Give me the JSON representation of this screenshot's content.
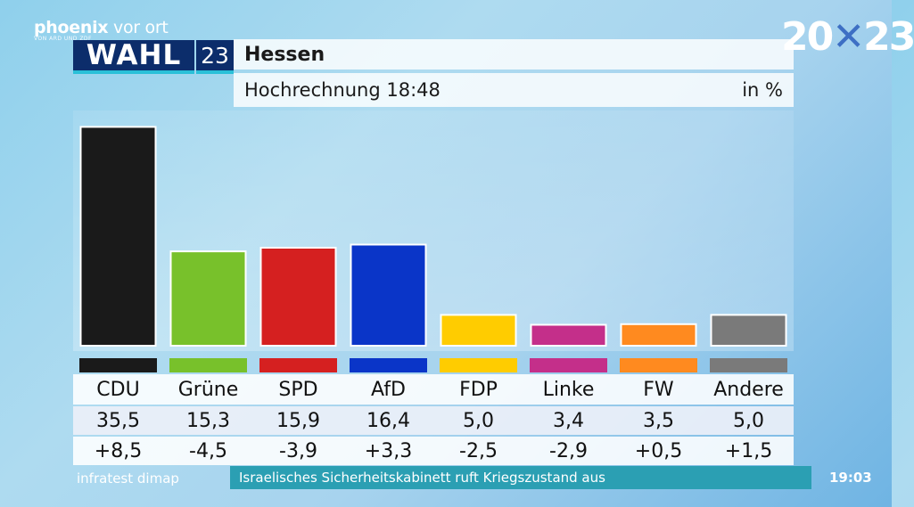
{
  "broadcaster": {
    "brand_bold": "phoenix",
    "brand_thin": " vor ort",
    "sub": "VON ARD UND ZDF"
  },
  "election": {
    "label": "WAHL",
    "number": "23",
    "year_left": "20",
    "year_x": "✕",
    "year_right": "23"
  },
  "header": {
    "title": "Hessen",
    "subtitle": "Hochrechnung 18:48",
    "unit": "in %"
  },
  "chart_data": {
    "type": "bar",
    "title": "Hessen – Hochrechnung 18:48",
    "ylabel": "in %",
    "ylim": [
      0,
      37
    ],
    "categories": [
      "CDU",
      "Grüne",
      "SPD",
      "AfD",
      "FDP",
      "Linke",
      "FW",
      "Andere"
    ],
    "values": [
      35.5,
      15.3,
      15.9,
      16.4,
      5.0,
      3.4,
      3.5,
      5.0
    ],
    "value_labels": [
      "35,5",
      "15,3",
      "15,9",
      "16,4",
      "5,0",
      "3,4",
      "3,5",
      "5,0"
    ],
    "diff_labels": [
      "+8,5",
      "-4,5",
      "-3,9",
      "+3,3",
      "-2,5",
      "-2,9",
      "+0,5",
      "+1,5"
    ],
    "colors": [
      "#1a1a1a",
      "#78c12b",
      "#d52020",
      "#0a35c8",
      "#ffcc00",
      "#c42f8a",
      "#ff8a1f",
      "#7a7a7a"
    ]
  },
  "footer": {
    "source": "infratest dimap",
    "ticker": "Israelisches Sicherheitskabinett ruft Kriegszustand aus",
    "time": "19:03"
  }
}
